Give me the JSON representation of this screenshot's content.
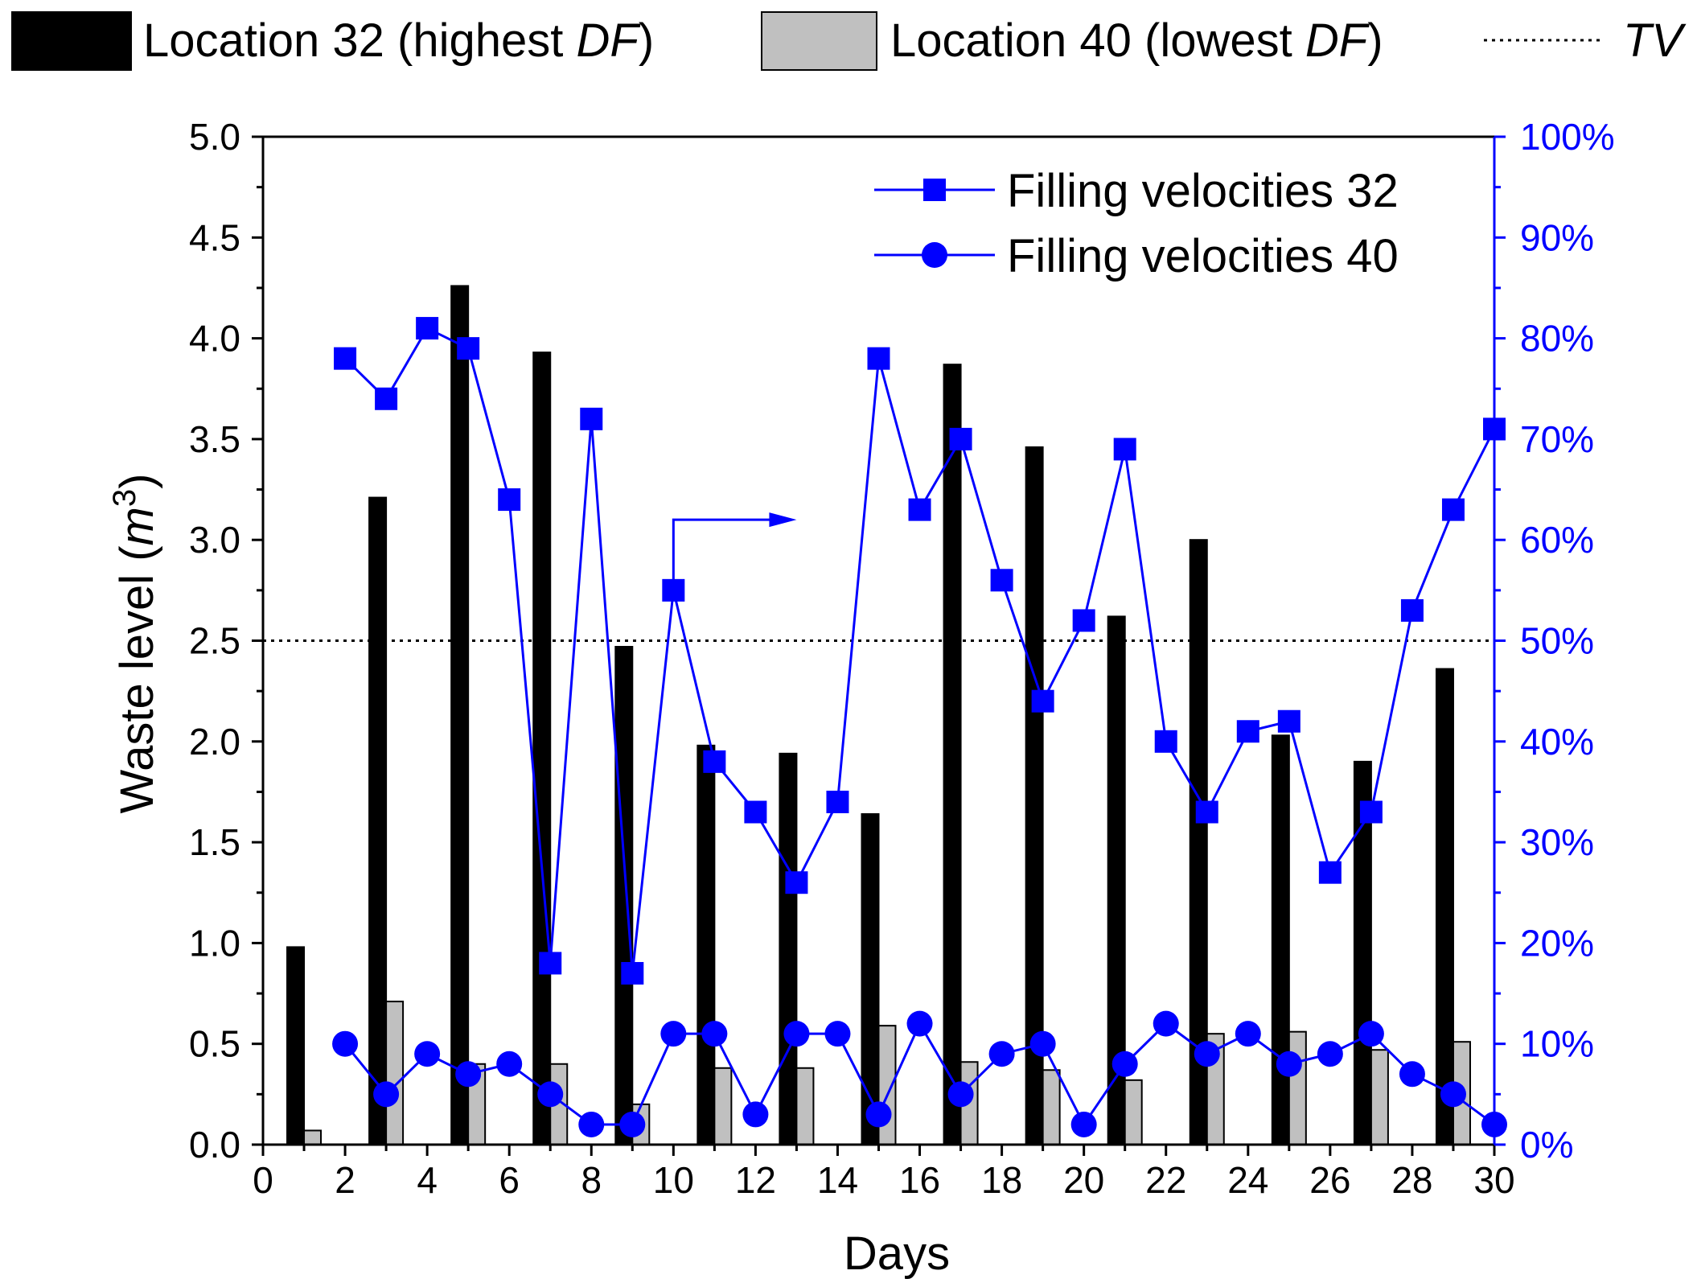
{
  "chart_data": {
    "type": "bar",
    "title": "",
    "xlabel": "Days",
    "ylabel": "Waste level (m3)",
    "ylabel_parts": {
      "text": "Waste level (",
      "italic": "m",
      "sup": "3",
      "close": ")"
    },
    "xlim": [
      0,
      30
    ],
    "ylim": [
      0,
      5
    ],
    "y2lim": [
      0,
      100
    ],
    "x_ticks": [
      0,
      2,
      4,
      6,
      8,
      10,
      12,
      14,
      16,
      18,
      20,
      22,
      24,
      26,
      28,
      30
    ],
    "y_ticks": [
      "0.0",
      "0.5",
      "1.0",
      "1.5",
      "2.0",
      "2.5",
      "3.0",
      "3.5",
      "4.0",
      "4.5",
      "5.0"
    ],
    "y2_ticks": [
      "0%",
      "10%",
      "20%",
      "30%",
      "40%",
      "50%",
      "60%",
      "70%",
      "80%",
      "90%",
      "100%"
    ],
    "threshold": {
      "name": "TV",
      "value": 2.5
    },
    "bar_series": [
      {
        "name": "Location 32 (highest DF)",
        "label_text": "Location 32 (highest ",
        "label_italic": "DF",
        "label_close": ")",
        "color": "#000000",
        "x": [
          1,
          3,
          5,
          7,
          9,
          11,
          13,
          15,
          17,
          19,
          21,
          23,
          25,
          27,
          29
        ],
        "values": [
          0.98,
          3.21,
          4.26,
          3.93,
          2.47,
          1.98,
          1.94,
          1.64,
          3.87,
          3.46,
          2.62,
          3.0,
          2.03,
          1.9,
          2.36
        ]
      },
      {
        "name": "Location 40 (lowest DF)",
        "label_text": "Location 40 (lowest ",
        "label_italic": "DF",
        "label_close": ")",
        "color": "#c0c0c0",
        "x": [
          1,
          3,
          5,
          7,
          9,
          11,
          13,
          15,
          17,
          19,
          21,
          23,
          25,
          27,
          29
        ],
        "values": [
          0.07,
          0.71,
          0.4,
          0.4,
          0.2,
          0.38,
          0.38,
          0.59,
          0.41,
          0.37,
          0.32,
          0.55,
          0.56,
          0.47,
          0.51
        ]
      }
    ],
    "line_series": [
      {
        "name": "Filling velocities 32",
        "marker": "square",
        "color": "#0000ff",
        "axis": "right",
        "x": [
          2,
          3,
          4,
          5,
          6,
          7,
          8,
          9,
          10,
          11,
          12,
          13,
          14,
          15,
          16,
          17,
          18,
          19,
          20,
          21,
          22,
          23,
          24,
          25,
          26,
          27,
          28,
          29,
          30
        ],
        "values": [
          78,
          74,
          81,
          79,
          64,
          18,
          72,
          17,
          55,
          38,
          33,
          26,
          34,
          78,
          63,
          70,
          56,
          44,
          52,
          69,
          40,
          33,
          41,
          42,
          27,
          33,
          53,
          63,
          71
        ]
      },
      {
        "name": "Filling velocities 40",
        "marker": "circle",
        "color": "#0000ff",
        "axis": "right",
        "x": [
          2,
          3,
          4,
          5,
          6,
          7,
          8,
          9,
          10,
          11,
          12,
          13,
          14,
          15,
          16,
          17,
          18,
          19,
          20,
          21,
          22,
          23,
          24,
          25,
          26,
          27,
          28,
          29,
          30
        ],
        "values": [
          10,
          5,
          9,
          7,
          8,
          5,
          2,
          2,
          11,
          11,
          3,
          11,
          11,
          3,
          12,
          5,
          9,
          10,
          2,
          8,
          12,
          9,
          11,
          8,
          9,
          11,
          7,
          5,
          2
        ]
      }
    ],
    "annotation": {
      "type": "arrow",
      "points_to": "right-axis",
      "from_x": 10,
      "from_pct": 54.5,
      "corner_pct": 62,
      "to_x": 13
    },
    "legend_top": "top",
    "legend_inner": "top-right"
  }
}
